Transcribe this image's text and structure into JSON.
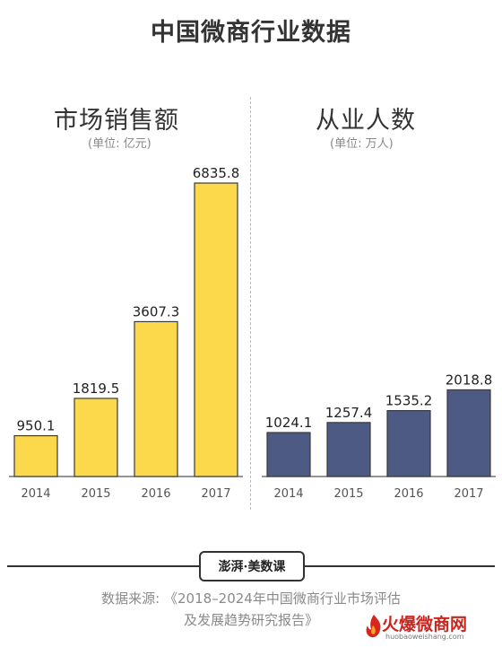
{
  "title": "中国微商行业数据",
  "panels": {
    "left": {
      "title": "市场销售额",
      "unit": "(单位: 亿元)"
    },
    "right": {
      "title": "从业人数",
      "unit": "(单位: 万人)"
    }
  },
  "chart_data": [
    {
      "type": "bar",
      "title": "市场销售额",
      "ylabel": "(单位: 亿元)",
      "categories": [
        "2014",
        "2015",
        "2016",
        "2017"
      ],
      "values": [
        950.1,
        1819.5,
        3607.3,
        6835.8
      ],
      "value_labels": [
        "950.1",
        "1819.5",
        "3607.3",
        "6835.8"
      ],
      "color": "#fcd94b",
      "stroke": "#3a3a3a",
      "grid": false
    },
    {
      "type": "bar",
      "title": "从业人数",
      "ylabel": "(单位: 万人)",
      "categories": [
        "2014",
        "2015",
        "2016",
        "2017"
      ],
      "values": [
        1024.1,
        1257.4,
        1535.2,
        2018.8
      ],
      "value_labels": [
        "1024.1",
        "1257.4",
        "1535.2",
        "2018.8"
      ],
      "color": "#4d5a83",
      "stroke": "#3a3a3a",
      "grid": false
    }
  ],
  "footer": {
    "logo": "澎湃·美数课",
    "source_line1": "数据来源: 《2018–2024年中国微商行业市场评估",
    "source_line2": "及发展趋势研究报告》"
  },
  "watermark": {
    "text": "火爆微商网",
    "url": "huobaoweishang.com"
  }
}
